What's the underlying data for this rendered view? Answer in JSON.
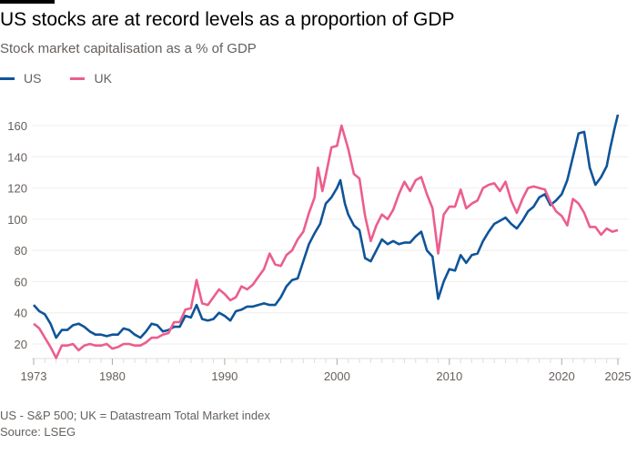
{
  "title": "US stocks are at record levels as a proportion of GDP",
  "subtitle": "Stock market capitalisation as a % of GDP",
  "footnote": "US - S&P 500; UK = Datastream Total Market index",
  "source": "Source: LSEG",
  "chart_data": {
    "type": "line",
    "title": "US stocks are at record levels as a proportion of GDP",
    "ylabel": "Stock market capitalisation as a % of GDP",
    "xlim": [
      1973,
      2025
    ],
    "ylim": [
      11,
      170
    ],
    "yticks": [
      20,
      40,
      60,
      80,
      100,
      120,
      140,
      160
    ],
    "xticks": [
      1973,
      1980,
      1990,
      2000,
      2010,
      2020,
      2025
    ],
    "grid": true,
    "legend": "top-left",
    "series": [
      {
        "name": "US",
        "color": "#0f5499",
        "x": [
          1973,
          1973.5,
          1974,
          1974.5,
          1975,
          1975.5,
          1976,
          1976.5,
          1977,
          1977.5,
          1978,
          1978.5,
          1979,
          1979.5,
          1980,
          1980.5,
          1981,
          1981.5,
          1982,
          1982.5,
          1983,
          1983.5,
          1984,
          1984.5,
          1985,
          1985.5,
          1986,
          1986.5,
          1987,
          1987.5,
          1988,
          1988.5,
          1989,
          1989.5,
          1990,
          1990.5,
          1991,
          1991.5,
          1992,
          1992.5,
          1993,
          1993.5,
          1994,
          1994.5,
          1995,
          1995.5,
          1996,
          1996.5,
          1997,
          1997.5,
          1998,
          1998.5,
          1999,
          1999.5,
          2000,
          2000.3,
          2000.7,
          2001,
          2001.5,
          2002,
          2002.5,
          2003,
          2003.5,
          2004,
          2004.5,
          2005,
          2005.5,
          2006,
          2006.5,
          2007,
          2007.5,
          2008,
          2008.5,
          2009,
          2009.5,
          2010,
          2010.5,
          2011,
          2011.5,
          2012,
          2012.5,
          2013,
          2013.5,
          2014,
          2014.5,
          2015,
          2015.5,
          2016,
          2016.5,
          2017,
          2017.5,
          2018,
          2018.5,
          2019,
          2019.5,
          2020,
          2020.5,
          2021,
          2021.5,
          2022,
          2022.5,
          2023,
          2023.5,
          2024,
          2024.3,
          2024.7,
          2025
        ],
        "values": [
          45,
          41,
          39,
          33,
          24,
          29,
          29,
          32,
          33,
          31,
          28,
          26,
          26,
          25,
          26,
          26,
          30,
          29,
          26,
          24,
          28,
          33,
          32,
          28,
          29,
          31,
          31,
          38,
          37,
          45,
          36,
          35,
          36,
          40,
          38,
          35,
          41,
          42,
          44,
          44,
          45,
          46,
          45,
          45,
          50,
          57,
          61,
          62,
          73,
          84,
          91,
          97,
          110,
          114,
          120,
          125,
          110,
          103,
          96,
          93,
          75,
          73,
          80,
          87,
          84,
          86,
          84,
          85,
          85,
          89,
          92,
          80,
          76,
          49,
          60,
          68,
          67,
          77,
          72,
          77,
          78,
          86,
          92,
          97,
          99,
          101,
          97,
          94,
          99,
          105,
          108,
          114,
          116,
          109,
          112,
          116,
          125,
          140,
          155,
          156,
          133,
          122,
          127,
          134,
          145,
          158,
          167
        ]
      },
      {
        "name": "UK",
        "color": "#eb5e8d",
        "x": [
          1973,
          1973.5,
          1974,
          1974.5,
          1975,
          1975.5,
          1976,
          1976.5,
          1977,
          1977.5,
          1978,
          1978.5,
          1979,
          1979.5,
          1980,
          1980.5,
          1981,
          1981.5,
          1982,
          1982.5,
          1983,
          1983.5,
          1984,
          1984.5,
          1985,
          1985.5,
          1986,
          1986.5,
          1987,
          1987.5,
          1988,
          1988.5,
          1989,
          1989.5,
          1990,
          1990.5,
          1991,
          1991.5,
          1992,
          1992.5,
          1993,
          1993.5,
          1994,
          1994.5,
          1995,
          1995.5,
          1996,
          1996.5,
          1997,
          1997.5,
          1998,
          1998.3,
          1998.7,
          1999,
          1999.5,
          2000,
          2000.4,
          2001,
          2001.5,
          2002,
          2002.5,
          2003,
          2003.5,
          2004,
          2004.5,
          2005,
          2005.5,
          2006,
          2006.5,
          2007,
          2007.5,
          2008,
          2008.5,
          2009,
          2009.5,
          2010,
          2010.5,
          2011,
          2011.5,
          2012,
          2012.5,
          2013,
          2013.5,
          2014,
          2014.5,
          2015,
          2015.5,
          2016,
          2016.5,
          2017,
          2017.5,
          2018,
          2018.5,
          2019,
          2019.5,
          2020,
          2020.5,
          2021,
          2021.5,
          2022,
          2022.5,
          2023,
          2023.5,
          2024,
          2024.5,
          2025
        ],
        "values": [
          33,
          30,
          24,
          18,
          11,
          19,
          19,
          20,
          16,
          19,
          20,
          19,
          19,
          20,
          17,
          18,
          20,
          20,
          19,
          19,
          21,
          24,
          24,
          26,
          27,
          34,
          34,
          42,
          43,
          61,
          46,
          45,
          50,
          55,
          52,
          48,
          50,
          57,
          55,
          58,
          63,
          68,
          78,
          71,
          70,
          77,
          80,
          87,
          92,
          104,
          114,
          133,
          118,
          128,
          146,
          147,
          160,
          145,
          129,
          126,
          102,
          86,
          96,
          103,
          100,
          106,
          116,
          124,
          118,
          125,
          127,
          116,
          107,
          78,
          103,
          108,
          108,
          119,
          107,
          110,
          112,
          120,
          122,
          123,
          118,
          124,
          112,
          104,
          113,
          120,
          121,
          120,
          119,
          111,
          105,
          102,
          96,
          113,
          110,
          104,
          95,
          95,
          90,
          94,
          92,
          93
        ]
      }
    ]
  }
}
